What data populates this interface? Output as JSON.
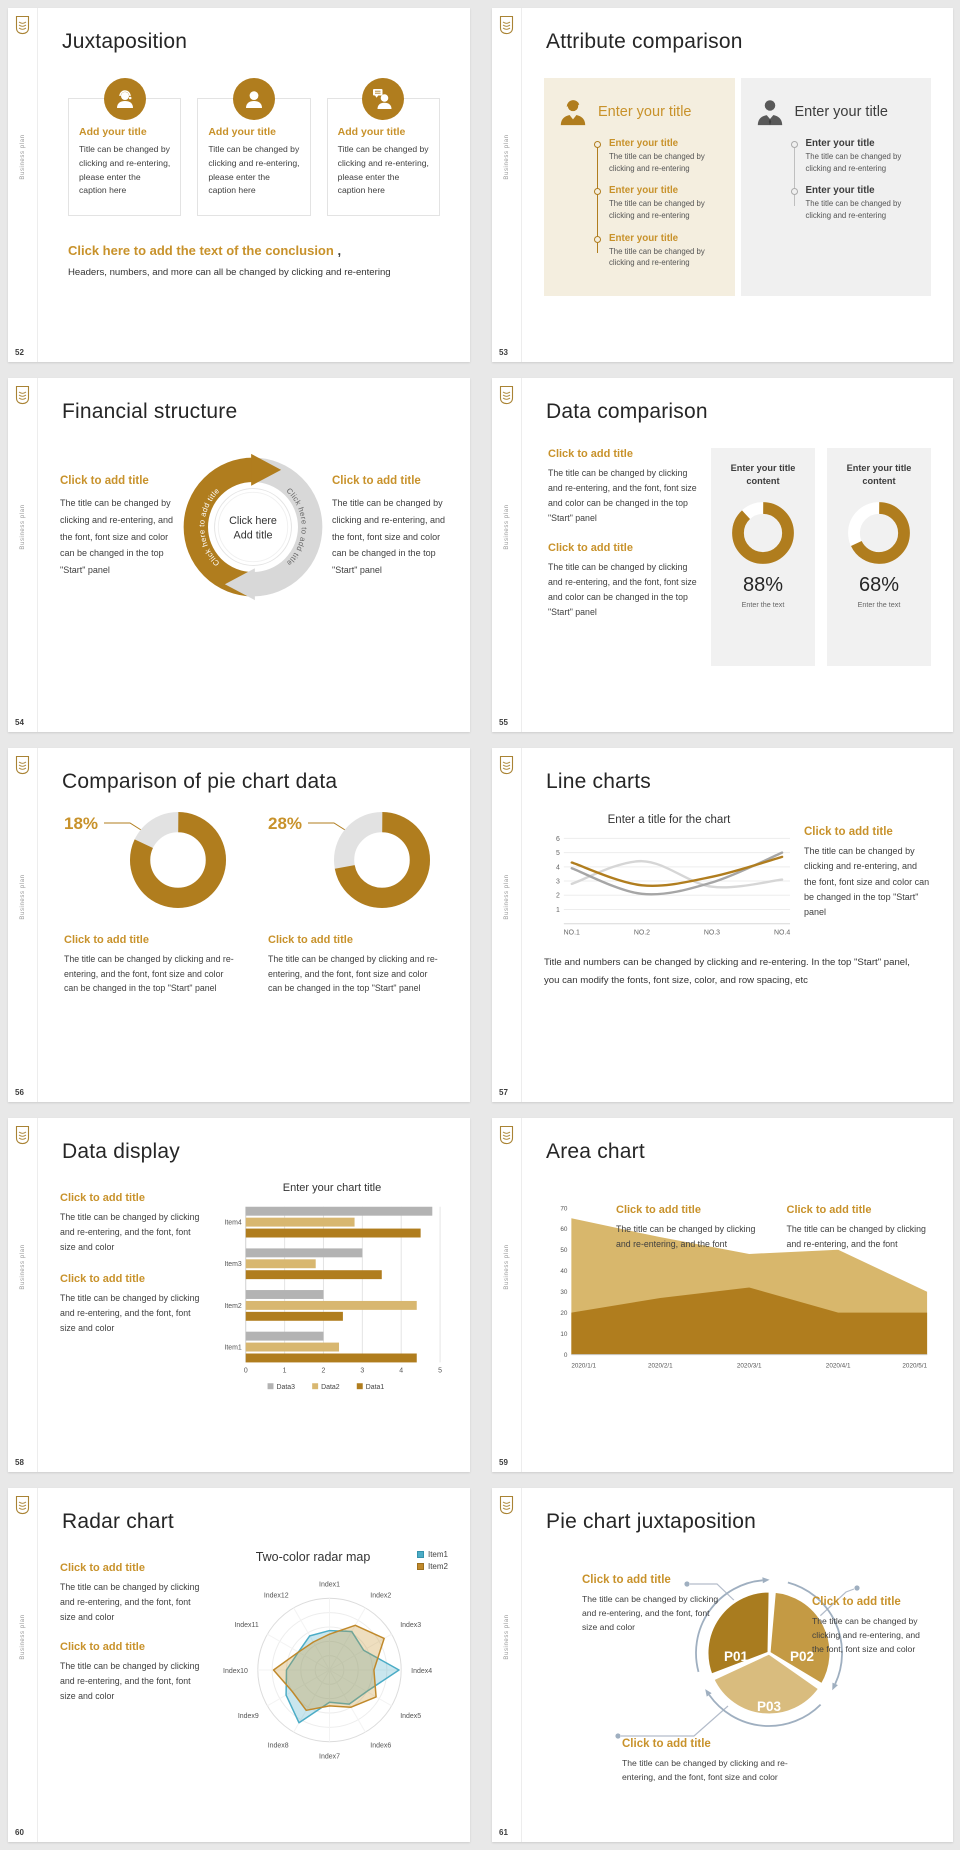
{
  "palette": {
    "gold": "#B07D1E",
    "gold_text": "#C8922B",
    "tan": "#D8B770",
    "gray_series": "#B3B3B3",
    "light_series": "#D6D6D6",
    "teal": "#4BACC6",
    "slate_arrow": "#9FAFC0",
    "beige_panel": "#F4EEDF",
    "gray_panel": "#F0F0F0"
  },
  "branding": {
    "sidebar_text": "Business plan",
    "logo": "handshake-badge-icon"
  },
  "slides": {
    "s52": {
      "number": "52",
      "title": "Juxtaposition",
      "cards": [
        {
          "icon": "support-agent-icon",
          "title": "Add your title",
          "body": "Title can be changed by clicking and re-entering, please enter the caption here"
        },
        {
          "icon": "person-icon",
          "title": "Add your title",
          "body": "Title can be changed by clicking and re-entering, please enter the caption here"
        },
        {
          "icon": "presenter-chat-icon",
          "title": "Add your title",
          "body": "Title can be changed by clicking and re-entering, please enter the caption here"
        }
      ],
      "conclusion": {
        "title": "Click here to add the text of the conclusion",
        "comma": " ,",
        "body": "Headers, numbers, and more can all be changed by clicking and re-entering"
      }
    },
    "s53": {
      "number": "53",
      "title": "Attribute comparison",
      "left_panel": {
        "icon": "businesswoman-icon",
        "title": "Enter your title",
        "items": [
          {
            "title": "Enter your title",
            "body": "The title can be changed by clicking and re-entering"
          },
          {
            "title": "Enter your title",
            "body": "The title can be changed by clicking and re-entering"
          },
          {
            "title": "Enter your title",
            "body": "The title can be changed by clicking and re-entering"
          }
        ]
      },
      "right_panel": {
        "icon": "businessman-icon",
        "title": "Enter your title",
        "items": [
          {
            "title": "Enter your title",
            "body": "The title can be changed by clicking and re-entering"
          },
          {
            "title": "Enter your title",
            "body": "The title can be changed by clicking and re-entering"
          }
        ]
      }
    },
    "s54": {
      "number": "54",
      "title": "Financial structure",
      "left": {
        "title": "Click to add title",
        "body": "The title can be changed by clicking and re-entering, and the font, font size and color can be changed in the top \"Start\" panel"
      },
      "right": {
        "title": "Click to add title",
        "body": "The title can be changed by clicking and re-entering, and the font, font size and color can be changed in the top \"Start\" panel"
      },
      "cycle": {
        "arc_left_text": "Click here to add title",
        "arc_right_text": "Click here to add title",
        "center_line1": "Click here",
        "center_line2": "Add title"
      }
    },
    "s55": {
      "number": "55",
      "title": "Data comparison",
      "blocks": [
        {
          "title": "Click to add title",
          "body": "The title can be changed by clicking and re-entering, and the font, font size and color can be changed in the top \"Start\" panel"
        },
        {
          "title": "Click to add title",
          "body": "The title can be changed by clicking and re-entering, and the font, font size and color can be changed in the top \"Start\" panel"
        }
      ],
      "cards": [
        {
          "title": "Enter your title content",
          "value": 88,
          "pct_label": "88%",
          "caption": "Enter the text"
        },
        {
          "title": "Enter your title content",
          "value": 68,
          "pct_label": "68%",
          "caption": "Enter the text"
        }
      ],
      "chart_data": {
        "type": "pie",
        "variant": "donut-pair",
        "labels": [
          "Enter your title content",
          "Enter your title content"
        ],
        "values": [
          88,
          68
        ]
      }
    },
    "s56": {
      "number": "56",
      "title": "Comparison of pie chart data",
      "groups": [
        {
          "pct_label": "18%",
          "value": 82,
          "title": "Click to add title",
          "body": "The title can be changed by clicking and re-entering, and the font, font size and color can be changed in the top \"Start\" panel"
        },
        {
          "pct_label": "28%",
          "value": 72,
          "title": "Click to add title",
          "body": "The title can be changed by clicking and re-entering, and the font, font size and color can be changed in the top \"Start\" panel"
        }
      ],
      "chart_data": {
        "type": "pie",
        "variant": "donut-pair",
        "labels": [
          "18%",
          "28%"
        ],
        "values": [
          18,
          28
        ]
      }
    },
    "s57": {
      "number": "57",
      "title": "Line charts",
      "chart_title": "Enter a title for the chart",
      "right": {
        "title": "Click to add title",
        "body": "The title can be changed by clicking and re-entering, and the font, font size and color can be changed in the top \"Start\" panel"
      },
      "footer": "Title and numbers can be changed by clicking and re-entering. In the top \"Start\" panel, you can modify the fonts, font size, color, and row spacing, etc",
      "chart_data": {
        "type": "line",
        "title": "Enter a title for the chart",
        "x": [
          "NO.1",
          "NO.2",
          "NO.3",
          "NO.4"
        ],
        "ylim": [
          0,
          6
        ],
        "yticks": [
          1,
          2,
          3,
          4,
          5,
          6
        ],
        "grid": true,
        "legend": false,
        "series": [
          {
            "name": "series-gold",
            "color": "#B07D1E",
            "values": [
              4.3,
              2.7,
              3.3,
              4.7
            ]
          },
          {
            "name": "series-gray",
            "color": "#A6A6A6",
            "values": [
              3.9,
              2.1,
              2.9,
              5.0
            ]
          },
          {
            "name": "series-lightgray",
            "color": "#D6D6D6",
            "values": [
              2.8,
              4.4,
              2.6,
              3.1
            ]
          }
        ]
      }
    },
    "s58": {
      "number": "58",
      "title": "Data display",
      "blocks": [
        {
          "title": "Click to add title",
          "body": "The title can be changed by clicking and re-entering, and the font, font size and color"
        },
        {
          "title": "Click to add title",
          "body": "The title can be changed by clicking and re-entering, and the font, font size and color"
        }
      ],
      "chart_title": "Enter your chart title",
      "chart_data": {
        "type": "bar",
        "orientation": "horizontal",
        "title": "Enter your chart title",
        "categories": [
          "Item1",
          "Item2",
          "Item3",
          "Item4"
        ],
        "xlim": [
          0,
          5
        ],
        "xticks": [
          0,
          1,
          2,
          3,
          4,
          5
        ],
        "legend_position": "bottom",
        "legend_order": [
          "Data3",
          "Data2",
          "Data1"
        ],
        "series": [
          {
            "name": "Data1",
            "color": "#B07D1E",
            "values": [
              4.4,
              2.5,
              3.5,
              4.5
            ]
          },
          {
            "name": "Data2",
            "color": "#D8B770",
            "values": [
              2.4,
              4.4,
              1.8,
              2.8
            ]
          },
          {
            "name": "Data3",
            "color": "#B3B3B3",
            "values": [
              2.0,
              2.0,
              3.0,
              4.8
            ]
          }
        ]
      }
    },
    "s59": {
      "number": "59",
      "title": "Area chart",
      "blocks": [
        {
          "title": "Click to add title",
          "body": "The title can be changed by clicking and re-entering, and the font"
        },
        {
          "title": "Click to add title",
          "body": "The title can be changed by clicking and re-entering, and the font"
        }
      ],
      "chart_data": {
        "type": "area",
        "x": [
          "2020/1/1",
          "2020/2/1",
          "2020/3/1",
          "2020/4/1",
          "2020/5/1"
        ],
        "ylim": [
          0,
          70
        ],
        "yticks": [
          0,
          10,
          20,
          30,
          40,
          50,
          60,
          70
        ],
        "grid": false,
        "series": [
          {
            "name": "upper",
            "color": "#D8B76C",
            "values": [
              65,
              56,
              48,
              50,
              30
            ]
          },
          {
            "name": "lower",
            "color": "#B07D1E",
            "values": [
              20,
              27,
              32,
              20,
              20
            ]
          }
        ]
      }
    },
    "s60": {
      "number": "60",
      "title": "Radar chart",
      "chart_title": "Two-color radar map",
      "blocks": [
        {
          "title": "Click to add title",
          "body": "The title can be changed by clicking and re-entering, and the font, font size and color"
        },
        {
          "title": "Click to add title",
          "body": "The title can be changed by clicking and re-entering, and the font, font size and color"
        }
      ],
      "chart_data": {
        "type": "radar",
        "title": "Two-color radar map",
        "rmax": 1,
        "axes": [
          "Index1",
          "Index2",
          "Index3",
          "Index4",
          "Index5",
          "Index6",
          "Index7",
          "Index8",
          "Index9",
          "Index10",
          "Index11",
          "Index12"
        ],
        "series": [
          {
            "name": "Item1",
            "color": "#4BACC6",
            "fill": "rgba(75,172,198,0.30)",
            "values": [
              0.55,
              0.62,
              0.55,
              0.97,
              0.6,
              0.55,
              0.45,
              0.85,
              0.7,
              0.6,
              0.5,
              0.55
            ]
          },
          {
            "name": "Item2",
            "color": "#C0892B",
            "fill": "rgba(200,146,43,0.30)",
            "values": [
              0.5,
              0.72,
              0.88,
              0.62,
              0.75,
              0.6,
              0.5,
              0.65,
              0.6,
              0.78,
              0.5,
              0.45
            ]
          }
        ]
      }
    },
    "s61": {
      "number": "61",
      "title": "Pie chart juxtaposition",
      "slices": [
        {
          "label": "P01"
        },
        {
          "label": "P02"
        },
        {
          "label": "P03"
        }
      ],
      "chart_data": {
        "type": "pie",
        "labels": [
          "P01",
          "P02",
          "P03"
        ],
        "values": [
          1,
          1,
          1
        ],
        "colors": [
          "#A97C1F",
          "#C49A44",
          "#D9BC7E"
        ]
      },
      "blocks": [
        {
          "title": "Click to add title",
          "body": "The title can be changed by clicking and re-entering, and the font, font size and color"
        },
        {
          "title": "Click to add title",
          "body": "The title can be changed by clicking and re-entering, and the font, font size and color"
        },
        {
          "title": "Click to add title",
          "body": "The title can be changed by clicking and re-entering, and the font, font size and color"
        }
      ]
    }
  }
}
